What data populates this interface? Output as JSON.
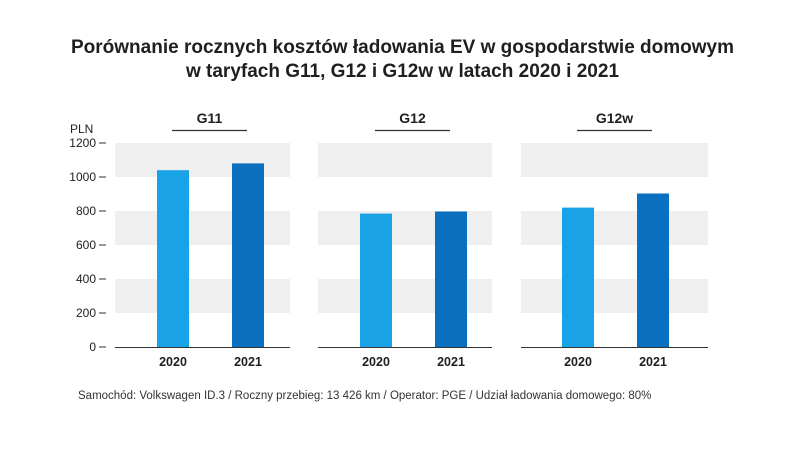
{
  "title_lines": [
    "Porównanie rocznych kosztów ładowania EV w gospodarstwie domowym",
    "w taryfach G11, G12 i G12w w latach 2020 i 2021"
  ],
  "footer": "Samochód: Volkswagen ID.3  /  Roczny przebieg: 13 426 km  /  Operator: PGE  /  Udział ładowania domowego: 80%",
  "colors": {
    "y2020": "#1aa2e6",
    "y2021": "#0a6fbf",
    "band": "#efefef",
    "axis": "#333333"
  },
  "chart_data": {
    "type": "bar",
    "ylabel": "PLN",
    "ylim": [
      0,
      1200
    ],
    "yticks": [
      "0",
      "200",
      "400",
      "600",
      "800",
      "1000",
      "1200"
    ],
    "grid": "alternating horizontal bands",
    "categories": [
      "2020",
      "2021"
    ],
    "panels": [
      {
        "name": "G11",
        "values": [
          1040,
          1080
        ]
      },
      {
        "name": "G12",
        "values": [
          785,
          797
        ]
      },
      {
        "name": "G12w",
        "values": [
          820,
          903
        ]
      }
    ]
  }
}
